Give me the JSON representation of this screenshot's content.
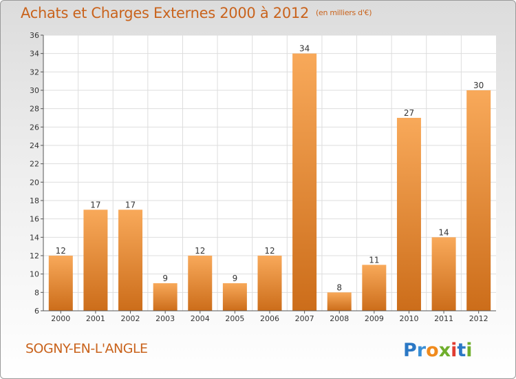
{
  "title": "Achats et Charges Externes 2000 à 2012",
  "unit": "(en milliers d'€)",
  "city": "SOGNY-EN-L'ANGLE",
  "logo_text": "Proxiti",
  "colors": {
    "title": "#c9631c",
    "bar_light": "#f8a95a",
    "bar_dark": "#cc6d1a",
    "grid": "#dddddd",
    "plot_bg": "#ffffff"
  },
  "chart_data": {
    "type": "bar",
    "categories": [
      "2000",
      "2001",
      "2002",
      "2003",
      "2004",
      "2005",
      "2006",
      "2007",
      "2008",
      "2009",
      "2010",
      "2011",
      "2012"
    ],
    "values": [
      12,
      17,
      17,
      9,
      12,
      9,
      12,
      34,
      8,
      11,
      27,
      14,
      30
    ],
    "ylim": [
      6,
      36
    ],
    "yticks": [
      6,
      8,
      10,
      12,
      14,
      16,
      18,
      20,
      22,
      24,
      26,
      28,
      30,
      32,
      34,
      36
    ],
    "grid": true
  }
}
